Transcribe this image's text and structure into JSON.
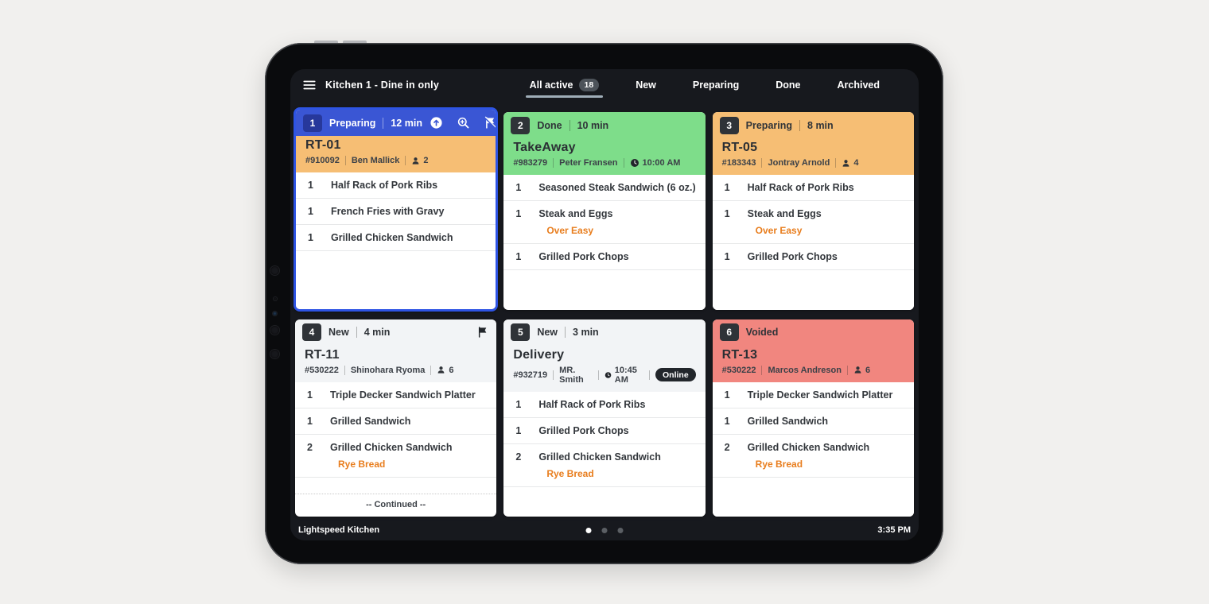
{
  "app": {
    "name": "Lightspeed Kitchen",
    "clock": "3:35 PM",
    "title": "Kitchen 1 - Dine in only",
    "pagination": {
      "pages": 3,
      "active_index": 0
    }
  },
  "tabs": [
    {
      "label": "All active",
      "badge": "18",
      "active": true
    },
    {
      "label": "New",
      "active": false
    },
    {
      "label": "Preparing",
      "active": false
    },
    {
      "label": "Done",
      "active": false
    },
    {
      "label": "Archived",
      "active": false
    }
  ],
  "colors": {
    "status_preparing": "#f6be74",
    "status_done": "#7edd8a",
    "status_new": "#f2f4f6",
    "status_voided": "#f1867f",
    "selected_blue": "#3a56d4",
    "selected_border": "#2e54e4",
    "modifier_orange": "#e87d1d",
    "dark_badge": "#2f3338"
  },
  "orders": [
    {
      "number": "1",
      "status": "Preparing",
      "elapsed": "12 min",
      "status_key": "preparing",
      "selected": true,
      "action_icons": true,
      "flagged": false,
      "title": "RT-01",
      "order_id": "#910092",
      "customer": "Ben Mallick",
      "guests": "2",
      "pickup_time": null,
      "online_badge": null,
      "continued_label": null,
      "items": [
        {
          "qty": "1",
          "name": "Half Rack of Pork Ribs",
          "modifier": null
        },
        {
          "qty": "1",
          "name": "French Fries with Gravy",
          "modifier": null
        },
        {
          "qty": "1",
          "name": "Grilled Chicken Sandwich",
          "modifier": null
        }
      ]
    },
    {
      "number": "2",
      "status": "Done",
      "elapsed": "10 min",
      "status_key": "done",
      "selected": false,
      "action_icons": false,
      "flagged": false,
      "title": "TakeAway",
      "order_id": "#983279",
      "customer": "Peter Fransen",
      "guests": null,
      "pickup_time": "10:00 AM",
      "online_badge": null,
      "continued_label": null,
      "items": [
        {
          "qty": "1",
          "name": "Seasoned Steak Sandwich (6 oz.)",
          "modifier": null
        },
        {
          "qty": "1",
          "name": "Steak and Eggs",
          "modifier": "Over Easy"
        },
        {
          "qty": "1",
          "name": "Grilled Pork Chops",
          "modifier": null
        }
      ]
    },
    {
      "number": "3",
      "status": "Preparing",
      "elapsed": "8 min",
      "status_key": "preparing",
      "selected": false,
      "action_icons": false,
      "flagged": false,
      "title": "RT-05",
      "order_id": "#183343",
      "customer": "Jontray Arnold",
      "guests": "4",
      "pickup_time": null,
      "online_badge": null,
      "continued_label": null,
      "items": [
        {
          "qty": "1",
          "name": "Half Rack of Pork Ribs",
          "modifier": null
        },
        {
          "qty": "1",
          "name": "Steak and Eggs",
          "modifier": "Over Easy"
        },
        {
          "qty": "1",
          "name": "Grilled Pork Chops",
          "modifier": null
        }
      ]
    },
    {
      "number": "4",
      "status": "New",
      "elapsed": "4 min",
      "status_key": "new",
      "selected": false,
      "action_icons": false,
      "flagged": true,
      "title": "RT-11",
      "order_id": "#530222",
      "customer": "Shinohara Ryoma",
      "guests": "6",
      "pickup_time": null,
      "online_badge": null,
      "continued_label": "-- Continued --",
      "items": [
        {
          "qty": "1",
          "name": "Triple Decker Sandwich Platter",
          "modifier": null
        },
        {
          "qty": "1",
          "name": "Grilled Sandwich",
          "modifier": null
        },
        {
          "qty": "2",
          "name": "Grilled Chicken Sandwich",
          "modifier": "Rye Bread"
        }
      ]
    },
    {
      "number": "5",
      "status": "New",
      "elapsed": "3 min",
      "status_key": "new",
      "selected": false,
      "action_icons": false,
      "flagged": false,
      "title": "Delivery",
      "order_id": "#932719",
      "customer": "MR. Smith",
      "guests": null,
      "pickup_time": "10:45 AM",
      "online_badge": "Online",
      "continued_label": null,
      "items": [
        {
          "qty": "1",
          "name": "Half Rack of Pork Ribs",
          "modifier": null
        },
        {
          "qty": "1",
          "name": "Grilled Pork Chops",
          "modifier": null
        },
        {
          "qty": "2",
          "name": "Grilled Chicken Sandwich",
          "modifier": "Rye Bread"
        }
      ]
    },
    {
      "number": "6",
      "status": "Voided",
      "elapsed": null,
      "status_key": "voided",
      "selected": false,
      "action_icons": false,
      "flagged": false,
      "title": "RT-13",
      "order_id": "#530222",
      "customer": "Marcos Andreson",
      "guests": "6",
      "pickup_time": null,
      "online_badge": null,
      "continued_label": null,
      "items": [
        {
          "qty": "1",
          "name": "Triple Decker Sandwich Platter",
          "modifier": null
        },
        {
          "qty": "1",
          "name": "Grilled Sandwich",
          "modifier": null
        },
        {
          "qty": "2",
          "name": "Grilled Chicken Sandwich",
          "modifier": "Rye Bread"
        }
      ]
    }
  ]
}
